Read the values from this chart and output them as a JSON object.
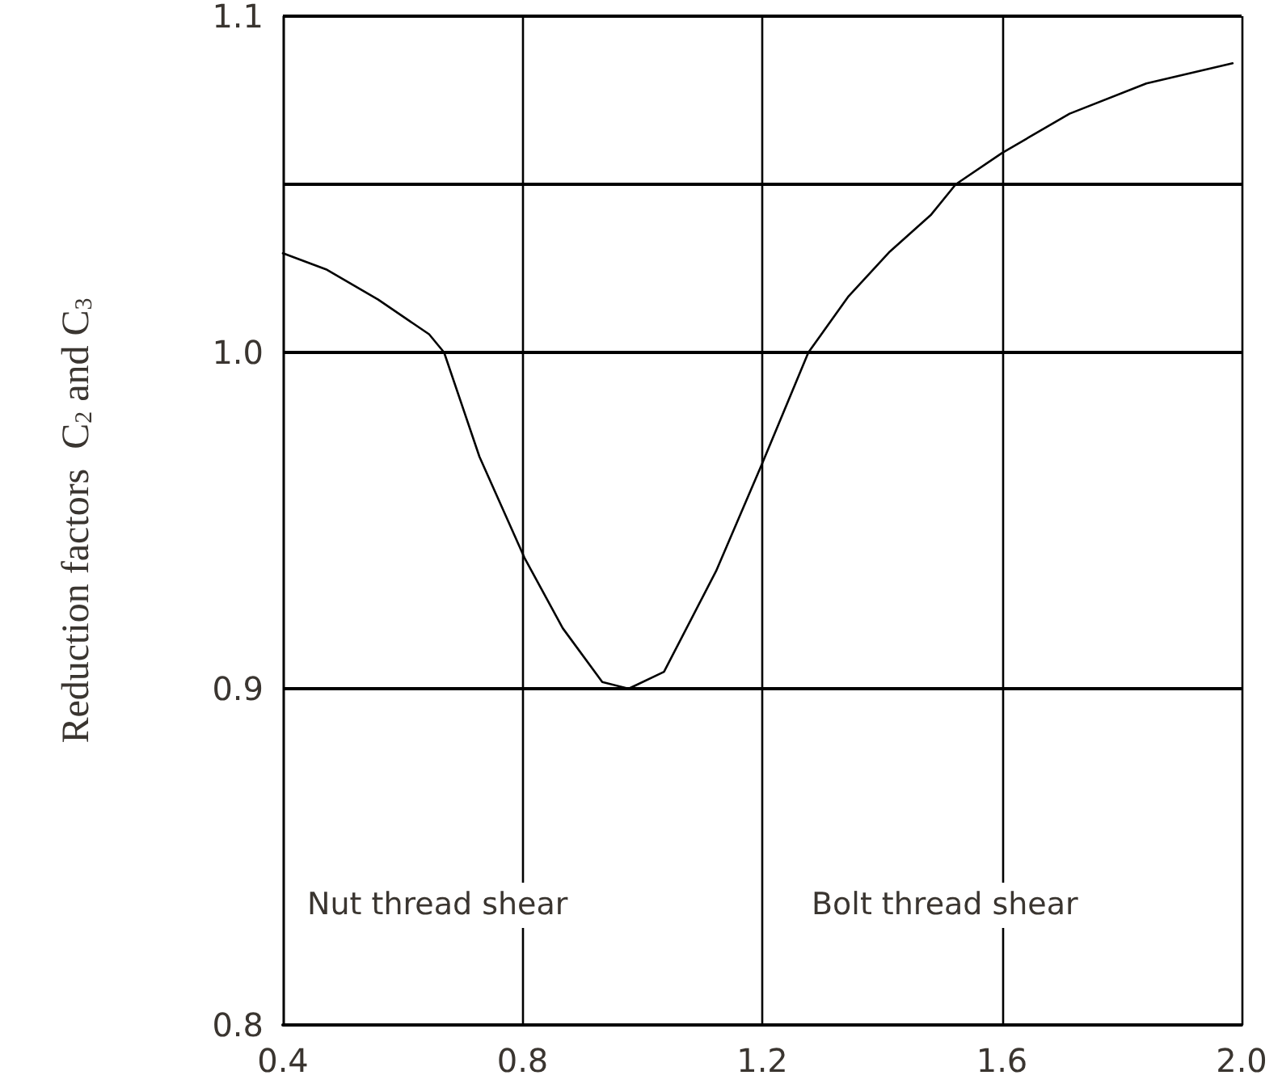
{
  "chart_data": {
    "type": "line",
    "ylabel": "Reduction factors  C$_{2}$ and C$_{3}$",
    "x": [
      0.4,
      0.472,
      0.559,
      0.644,
      0.669,
      0.728,
      0.803,
      0.867,
      0.933,
      0.977,
      1.036,
      1.123,
      1.2,
      1.277,
      1.344,
      1.413,
      1.482,
      1.523,
      1.6,
      1.713,
      1.841,
      1.985
    ],
    "series": [
      {
        "color": "#000000",
        "values": [
          1.0295,
          1.0247,
          1.0157,
          1.0054,
          1.0,
          0.969,
          0.939,
          0.918,
          0.902,
          0.9,
          0.905,
          0.935,
          0.967,
          1.0,
          1.0167,
          1.03,
          1.041,
          1.05,
          1.0593,
          1.071,
          1.08,
          1.086
        ]
      }
    ],
    "xlim": [
      0.4,
      2.0
    ],
    "xticks": [
      0.4,
      0.8,
      1.2,
      1.6,
      {
        "value": 2.0,
        "label": "2.0"
      }
    ],
    "ylim": [
      0.8,
      1.1
    ],
    "yticks": [
      0.8,
      0.9,
      {
        "value": 1.0,
        "label": "1.0"
      },
      {
        "value": 1.05,
        "label": null
      },
      1.1
    ],
    "grid": true,
    "marker": "none",
    "line_style": "solid",
    "annotations": [
      "Nut thread shear",
      "Bolt thread shear"
    ]
  }
}
